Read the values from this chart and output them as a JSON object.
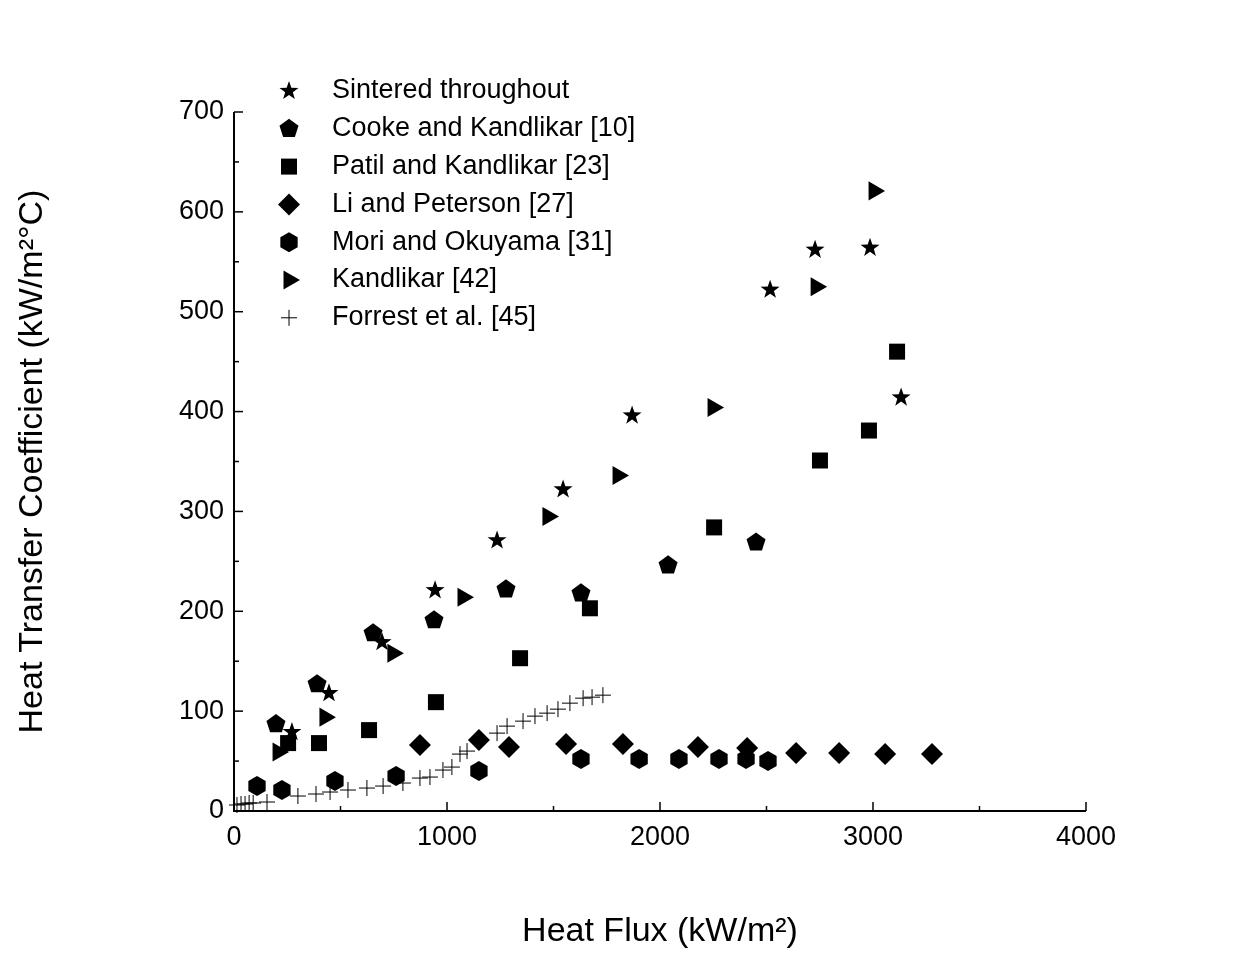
{
  "chart_data": {
    "type": "scatter",
    "xlabel": "Heat Flux (kW/m²)",
    "ylabel": "Heat Transfer Coefficient (kW/m²°C)",
    "xlim": [
      0,
      4000
    ],
    "xticks": [
      0,
      {
        "value": 500,
        "label": null
      },
      1000,
      {
        "value": 1500,
        "label": null
      },
      2000,
      {
        "value": 2500,
        "label": null
      },
      3000,
      {
        "value": 3500,
        "label": null
      },
      4000
    ],
    "ylim": [
      0,
      700
    ],
    "yticks": [
      0,
      {
        "value": 50,
        "label": null
      },
      100,
      {
        "value": 150,
        "label": null
      },
      200,
      {
        "value": 250,
        "label": null
      },
      300,
      {
        "value": 350,
        "label": null
      },
      400,
      {
        "value": 450,
        "label": null
      },
      500,
      {
        "value": 550,
        "label": null
      },
      600,
      {
        "value": 650,
        "label": null
      },
      700
    ],
    "grid": false,
    "legend": "top left",
    "series": [
      {
        "name": "Sintered throughout",
        "color": "#000000",
        "marker": "star",
        "x": [
          272,
          446,
          695,
          944,
          1235,
          1545,
          1869,
          2517,
          2728,
          2986,
          3132
        ],
        "values": [
          79,
          118,
          169,
          221,
          271,
          322,
          396,
          522,
          562,
          564,
          414
        ]
      },
      {
        "name": "Cooke and Kandlikar [10]",
        "color": "#000000",
        "x": [
          197,
          390,
          653,
          939,
          1277,
          1629,
          2038,
          2451
        ],
        "values": [
          87,
          127,
          178,
          191,
          222,
          218,
          246,
          269
        ]
      },
      {
        "name": "Patil and Kandlikar [23]",
        "color": "#000000",
        "marker": "square",
        "x": [
          254,
          399,
          634,
          948,
          1343,
          1671,
          2254,
          2751,
          2981,
          3113
        ],
        "values": [
          68,
          68,
          81,
          109,
          153,
          203,
          284,
          351,
          381,
          460
        ]
      },
      {
        "name": "Li and Peterson [27]",
        "color": "#000000",
        "marker": "diamond",
        "x": [
          873,
          1150,
          1291,
          1559,
          1826,
          2178,
          2409,
          2639,
          2841,
          3057,
          3277
        ],
        "values": [
          66,
          71,
          64,
          67,
          67,
          64,
          63,
          58,
          58,
          57,
          57
        ]
      },
      {
        "name": "Mori and Okuyama [31]",
        "color": "#000000",
        "x": [
          108,
          225,
          474,
          761,
          1150,
          1629,
          1902,
          2089,
          2277,
          2404,
          2507
        ],
        "values": [
          25,
          21,
          30,
          35,
          40,
          52,
          52,
          52,
          52,
          52,
          50
        ]
      },
      {
        "name": "Kandlikar [42]",
        "color": "#000000",
        "marker": "triangle",
        "x": [
          207,
          427,
          746,
          1075,
          1474,
          1803,
          2249,
          2733,
          3005
        ],
        "values": [
          59,
          94,
          158,
          214,
          295,
          336,
          404,
          525,
          621
        ]
      },
      {
        "name": "Forrest et al. [45]",
        "color": "#000000",
        "marker": "cross",
        "x": [
          14,
          33,
          52,
          71,
          90,
          155,
          300,
          385,
          451,
          535,
          624,
          700,
          793,
          873,
          920,
          981,
          1023,
          1061,
          1094,
          1235,
          1282,
          1357,
          1413,
          1470,
          1521,
          1577,
          1639,
          1681,
          1732
        ],
        "values": [
          6,
          7,
          7,
          8,
          8,
          9,
          15,
          17,
          19,
          21,
          23,
          25,
          28,
          33,
          34,
          41,
          44,
          57,
          60,
          78,
          85,
          90,
          95,
          98,
          102,
          108,
          113,
          114,
          116
        ]
      }
    ]
  }
}
